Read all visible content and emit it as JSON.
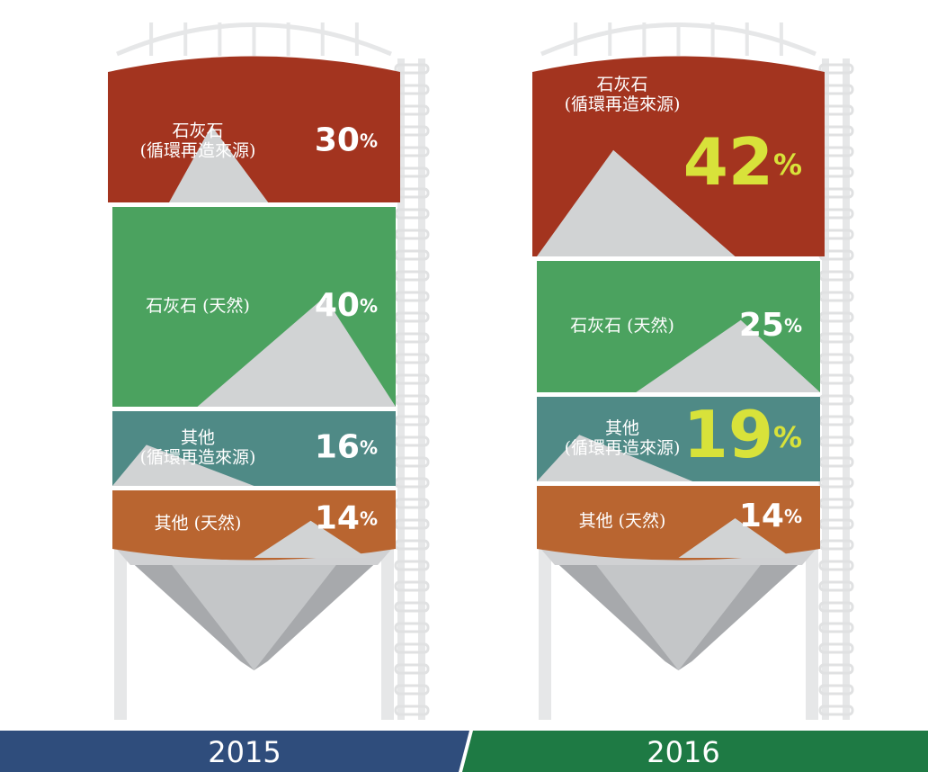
{
  "silos": [
    {
      "year": "2015",
      "segments": [
        {
          "label": [
            "石灰石",
            "(循環再造來源)"
          ],
          "value": "30",
          "unit": "%"
        },
        {
          "label": [
            "石灰石 (天然)"
          ],
          "value": "40",
          "unit": "%"
        },
        {
          "label": [
            "其他",
            "(循環再造來源)"
          ],
          "value": "16",
          "unit": "%"
        },
        {
          "label": [
            "其他 (天然)"
          ],
          "value": "14",
          "unit": "%"
        }
      ]
    },
    {
      "year": "2016",
      "segments": [
        {
          "label": [
            "石灰石",
            "(循環再造來源)"
          ],
          "value": "42",
          "unit": "%"
        },
        {
          "label": [
            "石灰石 (天然)"
          ],
          "value": "25",
          "unit": "%"
        },
        {
          "label": [
            "其他",
            "(循環再造來源)"
          ],
          "value": "19",
          "unit": "%"
        },
        {
          "label": [
            "其他 (天然)"
          ],
          "value": "14",
          "unit": "%"
        }
      ]
    }
  ]
}
